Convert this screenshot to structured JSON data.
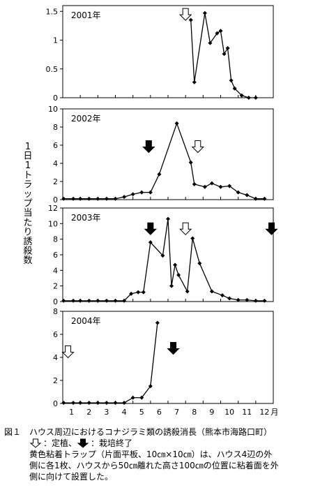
{
  "chart_data": {
    "type": "line",
    "ylabel": "1日1トラップ当たり誘殺数",
    "x_tick_labels": [
      "1",
      "2",
      "3",
      "4",
      "5",
      "6",
      "7",
      "8",
      "9",
      "10",
      "11",
      "12"
    ],
    "x_unit_label": "月",
    "xlim": [
      0.5,
      12.5
    ],
    "panels": [
      {
        "year_label": "2001年",
        "ylim": [
          0,
          1.6
        ],
        "y_ticks": [
          0,
          0.5,
          1,
          1.5
        ],
        "y_tick_labels": [
          "0",
          "0.5",
          "1",
          "1.5"
        ],
        "x": [
          7.8,
          8.0,
          8.6,
          8.9,
          9.3,
          9.5,
          9.7,
          9.9,
          10.1,
          10.3,
          10.7,
          11.1,
          11.5
        ],
        "y": [
          1.35,
          0.27,
          1.47,
          0.95,
          1.12,
          1.16,
          0.76,
          0.86,
          0.3,
          0.16,
          0.04,
          0.0,
          0.0
        ],
        "markers": [
          {
            "kind": "planting",
            "x": 7.5,
            "y_top": 1.55
          }
        ]
      },
      {
        "year_label": "2002年",
        "ylim": [
          0,
          10
        ],
        "y_ticks": [
          0,
          2,
          4,
          6,
          8,
          10
        ],
        "y_tick_labels": [
          "0",
          "2",
          "4",
          "6",
          "8",
          "10"
        ],
        "x": [
          0.55,
          1.1,
          1.5,
          2.0,
          2.5,
          3.0,
          3.5,
          4.0,
          4.5,
          5.0,
          5.5,
          6.0,
          7.0,
          7.8,
          8.0,
          8.6,
          9.0,
          9.5,
          10.0,
          10.5,
          11.0,
          11.5,
          12.0
        ],
        "y": [
          0.1,
          0.1,
          0.1,
          0.1,
          0.1,
          0.1,
          0.1,
          0.3,
          0.6,
          0.8,
          0.8,
          2.8,
          8.4,
          4.1,
          1.7,
          1.4,
          1.8,
          1.4,
          1.5,
          0.8,
          0.5,
          0.1,
          0.1
        ],
        "markers": [
          {
            "kind": "end",
            "x": 5.4,
            "y_top": 6.5
          },
          {
            "kind": "planting",
            "x": 8.2,
            "y_top": 6.5
          }
        ]
      },
      {
        "year_label": "2003年",
        "ylim": [
          0,
          12
        ],
        "y_ticks": [
          0,
          2,
          4,
          6,
          8,
          10,
          12
        ],
        "y_tick_labels": [
          "0",
          "2",
          "4",
          "6",
          "8",
          "10",
          "12"
        ],
        "x": [
          0.55,
          1.1,
          1.5,
          2.0,
          2.5,
          3.0,
          3.5,
          4.0,
          4.4,
          4.8,
          5.1,
          5.5,
          6.2,
          6.5,
          6.7,
          6.9,
          7.1,
          7.6,
          7.9,
          8.3,
          9.0,
          9.6,
          10.0,
          10.5,
          11.0,
          11.5,
          12.0
        ],
        "y": [
          0.1,
          0.1,
          0.1,
          0.1,
          0.1,
          0.1,
          0.1,
          0.1,
          1.0,
          1.2,
          1.2,
          7.6,
          5.9,
          10.6,
          2.0,
          4.7,
          3.4,
          1.3,
          8.1,
          4.9,
          1.3,
          0.8,
          0.4,
          0.2,
          0.2,
          0.1,
          0.1
        ],
        "markers": [
          {
            "kind": "end",
            "x": 5.5,
            "y_top": 10.1
          },
          {
            "kind": "planting",
            "x": 7.5,
            "y_top": 10.1
          },
          {
            "kind": "end",
            "x": 12.4,
            "y_top": 10.1
          }
        ]
      },
      {
        "year_label": "2004年",
        "ylim": [
          0,
          8
        ],
        "y_ticks": [
          0,
          2,
          4,
          6,
          8
        ],
        "y_tick_labels": [
          "0",
          "2",
          "4",
          "6",
          "8"
        ],
        "x": [
          0.55,
          1.1,
          1.5,
          2.0,
          2.5,
          3.0,
          3.5,
          4.0,
          4.5,
          5.0,
          5.5,
          5.9
        ],
        "y": [
          0.05,
          0.05,
          0.05,
          0.05,
          0.05,
          0.05,
          0.05,
          0.05,
          0.5,
          0.5,
          1.5,
          7.0
        ],
        "markers": [
          {
            "kind": "planting",
            "x": 0.8,
            "y_top": 5.0
          },
          {
            "kind": "end",
            "x": 6.8,
            "y_top": 5.3
          }
        ]
      }
    ]
  },
  "caption": {
    "title": "図１　ハウス周辺におけるコナジラミ類の誘殺消長（熊本市海路口町）",
    "legend_planting": "：定植、",
    "legend_end": "：栽培終了",
    "note_lines": [
      "黄色粘着トラップ（片面平板、10㎝×10㎝）は、ハウス4辺の外",
      "側に各1枚、ハウスから50㎝離れた高さ100㎝の位置に粘着面を外",
      "側に向けて設置した。"
    ]
  }
}
